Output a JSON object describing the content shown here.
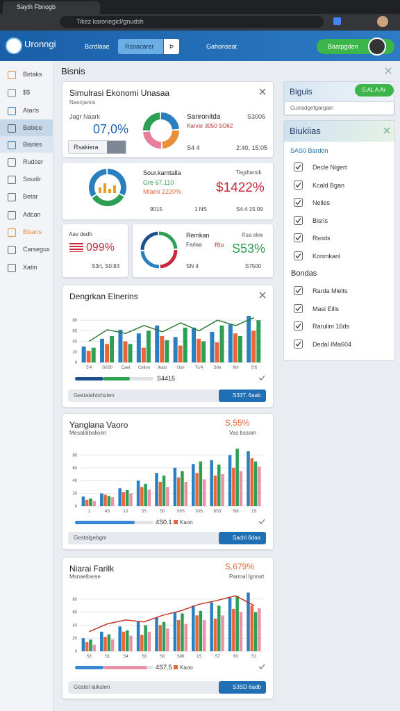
{
  "browser": {
    "tab_title": "Sayth Fbnogb",
    "url": "Tikez karonegicl/gnudsh"
  },
  "header": {
    "app_name": "Uronngi",
    "nav": [
      "Bcrdlaae",
      "Rsoacarer",
      "Þ",
      "Gahonseat"
    ],
    "active_nav": 1,
    "user_button": "Baatpgden"
  },
  "sidebar": {
    "items": [
      "Birtaks",
      "$$",
      "Atarls",
      "Bobico",
      "Biaries",
      "Rudcer",
      "Soudir",
      "Betar",
      "Adcan",
      "Bisans",
      "Carsegux",
      "Xatin"
    ],
    "active": 3
  },
  "page": {
    "title": "Bisnis"
  },
  "summary_card": {
    "title": "Simulrasi Ekonomi Unasaa",
    "subtitle": "Naocjamis",
    "metric_label": "Jagr Naark",
    "metric_value": "07,0%",
    "select": "Rsakiera",
    "side_title": "Sanronitda",
    "side_value": "S3005",
    "side_note": "Karver 3050 SO62",
    "foot_left": "S4 4",
    "foot_right": "2:40, 15:05"
  },
  "stat_card": {
    "title": "Sour.kamtalla",
    "tag": "Tegdtamik",
    "line1": "Gre 67.110",
    "line2": "Mlaeo 2220%",
    "value": "$1422%",
    "foot1": "9015",
    "foot2": "1 NS",
    "foot3": "S4:4 15:09"
  },
  "small_card": {
    "title": "Aav dedh",
    "value": "099%",
    "foot": "S3rt, S0:83"
  },
  "mid_card": {
    "title": "Remkan",
    "label": "Farlaa",
    "label_value": "Rlo",
    "tag": "Rsa ekw",
    "value": "S53%",
    "foot_left": "SN 4",
    "foot_right": "S7500"
  },
  "charts": [
    {
      "title": "Dengrkan Elnerins",
      "amount": "S4415",
      "footer": "Gestaiahtohuten",
      "button": "S33T. 6aab",
      "categories": [
        "5'4",
        "S0S0",
        "Caet",
        "Cotlon",
        "Ikaio",
        "Usn",
        "Tu'4",
        "S0e",
        "Xhr",
        "S'6"
      ],
      "ylim": [
        0,
        100
      ],
      "yticks": [
        0,
        20,
        40,
        60,
        80
      ],
      "series": [
        {
          "color": "#2a7fc1",
          "values": [
            30,
            45,
            62,
            55,
            70,
            48,
            66,
            58,
            72,
            88
          ]
        },
        {
          "color": "#e8663a",
          "values": [
            22,
            35,
            40,
            28,
            50,
            32,
            45,
            38,
            55,
            60
          ]
        },
        {
          "color": "#2f9e55",
          "values": [
            28,
            50,
            35,
            60,
            42,
            66,
            40,
            70,
            50,
            80
          ]
        },
        {
          "type": "line",
          "color": "#2f7d3a",
          "values": [
            40,
            62,
            55,
            70,
            58,
            75,
            60,
            80,
            70,
            85
          ]
        }
      ],
      "progress": [
        {
          "color": "#1f4e8c",
          "value": 36
        },
        {
          "color": "#2fa04e",
          "value": 34
        }
      ],
      "progress_range": [
        0,
        100
      ]
    },
    {
      "title": "Yanglana Vaoro",
      "kpi": "S,55%",
      "subtitle": "Mesaldibalioen",
      "tag": "Vas bssam",
      "amount": "4S0.1",
      "legend": "Kaon",
      "footer": "Gestalgebgm",
      "button": "Sachl 6daa",
      "categories": [
        "1",
        "4S",
        "10",
        "3S",
        "50",
        "S0S",
        "30S",
        "6S3",
        "Sl6",
        "1S"
      ],
      "ylim": [
        0,
        100
      ],
      "yticks": [
        0,
        20,
        40,
        60,
        80
      ],
      "series": [
        {
          "color": "#2a7fc1",
          "values": [
            15,
            20,
            28,
            40,
            52,
            60,
            66,
            72,
            80,
            86
          ]
        },
        {
          "color": "#e8663a",
          "values": [
            10,
            18,
            22,
            30,
            38,
            45,
            52,
            48,
            60,
            75
          ]
        },
        {
          "color": "#2f9e55",
          "values": [
            12,
            16,
            25,
            35,
            48,
            55,
            70,
            65,
            90,
            70
          ]
        },
        {
          "color": "#e991a8",
          "values": [
            8,
            14,
            20,
            26,
            30,
            38,
            42,
            50,
            55,
            62
          ]
        }
      ],
      "progress": [
        {
          "color": "#3a86d4",
          "value": 76
        }
      ],
      "progress_range": [
        0,
        100
      ]
    },
    {
      "title": "Niarai Farilk",
      "kpi": "S,679%",
      "subtitle": "Msnaelbeise",
      "tag": "Parmal lgnrart",
      "amount": "4S7.5",
      "legend": "Kaoo",
      "footer": "Gestel laikulen",
      "button": "S3SD 6adb",
      "categories": [
        "S3",
        "S1",
        "S4",
        "S9",
        "S0",
        "S06",
        "1S",
        "S7",
        "60",
        "S1"
      ],
      "ylim": [
        0,
        100
      ],
      "yticks": [
        0,
        20,
        40,
        60,
        80
      ],
      "series": [
        {
          "color": "#2a7fc1",
          "values": [
            20,
            30,
            38,
            45,
            52,
            60,
            70,
            75,
            82,
            90
          ]
        },
        {
          "color": "#e8663a",
          "values": [
            14,
            22,
            30,
            25,
            40,
            48,
            55,
            50,
            65,
            70
          ]
        },
        {
          "color": "#2f9e55",
          "values": [
            18,
            26,
            32,
            40,
            45,
            58,
            62,
            70,
            85,
            60
          ]
        },
        {
          "color": "#e991a8",
          "values": [
            10,
            18,
            24,
            30,
            35,
            42,
            48,
            55,
            60,
            66
          ]
        },
        {
          "type": "line",
          "color": "#c0392b",
          "values": [
            30,
            42,
            48,
            45,
            55,
            62,
            72,
            78,
            85,
            70
          ]
        }
      ],
      "progress": [
        {
          "color": "#3a86d4",
          "value": 36
        },
        {
          "color": "#e991a8",
          "value": 56
        }
      ],
      "progress_range": [
        0,
        100
      ]
    }
  ],
  "right_panel": {
    "title": "Biguis",
    "badge": "S.AL A.Ar",
    "input": "Curradgefgargain"
  },
  "filter_panel": {
    "title": "Biukiias",
    "section1": "SAS0 Bardon",
    "items1": [
      {
        "label": "Decle Nigert",
        "checked": true
      },
      {
        "label": "Kcald Bgan",
        "checked": true
      },
      {
        "label": "Nelles",
        "checked": true
      },
      {
        "label": "Bisris",
        "checked": true
      },
      {
        "label": "Rsnds",
        "checked": true
      },
      {
        "label": "Konmkanl",
        "checked": true
      }
    ],
    "section2": "Bondas",
    "items2": [
      {
        "label": "Rarda Mielts",
        "checked": true
      },
      {
        "label": "Masi Eills",
        "checked": true
      },
      {
        "label": "Rarulim 16ds",
        "checked": true
      },
      {
        "label": "Dedal IMa604",
        "checked": true
      }
    ]
  }
}
